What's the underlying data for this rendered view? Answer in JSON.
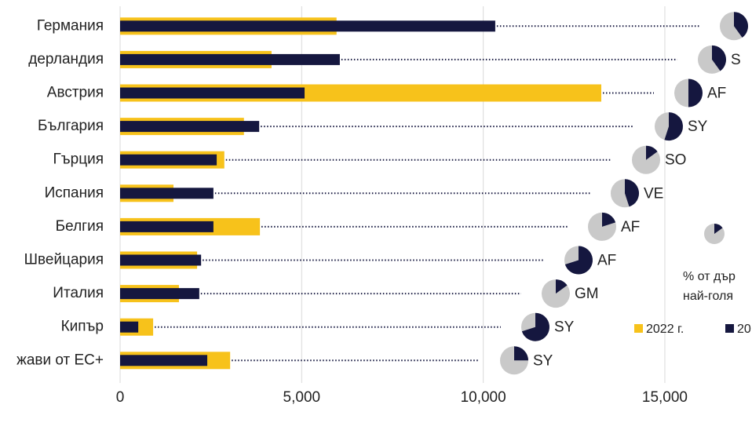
{
  "chart_data": {
    "type": "bar",
    "categories": [
      "Германия",
      "дерландия",
      "Австрия",
      "България",
      "Гърция",
      "Испания",
      "Белгия",
      "Швейцария",
      "Италия",
      "Кипър",
      "жави от ЕС+"
    ],
    "series": [
      {
        "name": "2022 г.",
        "color": "#f7c21b",
        "values": [
          5960,
          4170,
          13250,
          3410,
          2870,
          1470,
          3850,
          2120,
          1620,
          910,
          3030
        ]
      },
      {
        "name": "20",
        "color": "#15173f",
        "values": [
          10330,
          6050,
          5080,
          3830,
          2660,
          2570,
          2570,
          2230,
          2180,
          500,
          2400
        ]
      }
    ],
    "share_values": [
      40,
      40,
      50,
      55,
      15,
      45,
      20,
      70,
      15,
      70,
      25
    ],
    "share_labels": [
      "",
      "S",
      "AF",
      "SY",
      "SO",
      "VE",
      "AF",
      "AF",
      "GM",
      "SY",
      "SY"
    ],
    "share_colors": [
      "#15173f",
      "#c9c9c9"
    ],
    "legend_share": 15,
    "annotations": [
      "% от дър",
      "най-голя"
    ],
    "xlim": [
      0,
      17400
    ],
    "xticks": [
      0,
      {
        "value": 5000,
        "label": "5,000"
      },
      {
        "value": 10000,
        "label": "10,000"
      },
      {
        "value": 15000,
        "label": "15,000"
      }
    ],
    "grid": true
  }
}
